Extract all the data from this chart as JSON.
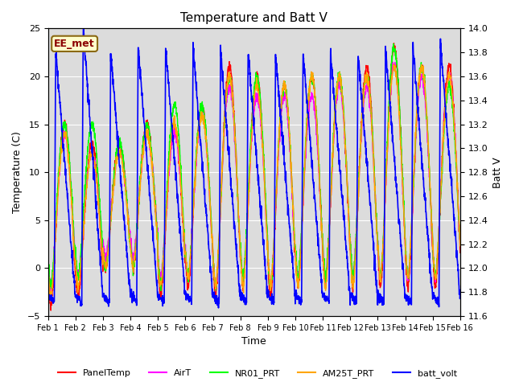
{
  "title": "Temperature and Batt V",
  "xlabel": "Time",
  "ylabel_left": "Temperature (C)",
  "ylabel_right": "Batt V",
  "ylim_left": [
    -5,
    25
  ],
  "ylim_right": [
    11.6,
    14.0
  ],
  "yticks_left": [
    -5,
    0,
    5,
    10,
    15,
    20,
    25
  ],
  "yticks_right": [
    11.6,
    11.8,
    12.0,
    12.2,
    12.4,
    12.6,
    12.8,
    13.0,
    13.2,
    13.4,
    13.6,
    13.8,
    14.0
  ],
  "xtick_labels": [
    "Feb 1",
    "Feb 2",
    "Feb 3",
    "Feb 4",
    "Feb 5",
    "Feb 6",
    "Feb 7",
    "Feb 8",
    "Feb 9",
    "Feb 10",
    "Feb 11",
    "Feb 12",
    "Feb 13",
    "Feb 14",
    "Feb 15",
    "Feb 16"
  ],
  "annotation_text": "EE_met",
  "annotation_fg": "#8B0000",
  "annotation_bg": "#FFFFCC",
  "annotation_edge": "#8B6914",
  "background_color": "#DCDCDC",
  "legend_entries": [
    "PanelTemp",
    "AirT",
    "NR01_PRT",
    "AM25T_PRT",
    "batt_volt"
  ],
  "line_colors": [
    "red",
    "#FF00FF",
    "lime",
    "orange",
    "blue"
  ],
  "line_widths": [
    1.0,
    1.0,
    1.0,
    1.0,
    1.2
  ],
  "n_days": 15,
  "pts_per_day": 144,
  "figsize": [
    6.4,
    4.8
  ],
  "dpi": 100
}
